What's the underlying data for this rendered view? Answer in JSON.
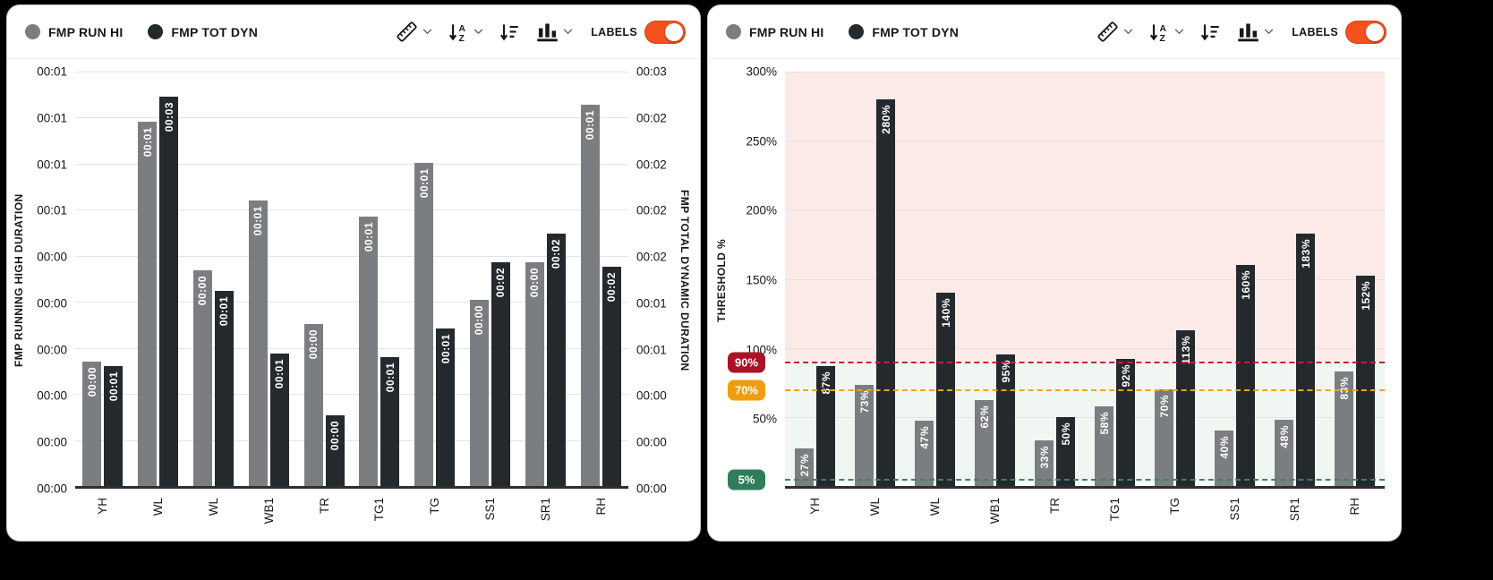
{
  "colors": {
    "page_bg": "#000000",
    "card_bg": "#ffffff",
    "bar_gray": "#7b7e81",
    "bar_dark": "#24292d",
    "accent_orange": "#f4511e",
    "threshold_red": "#ab1226",
    "threshold_red_line": "#c41f35",
    "threshold_amber": "#ef9d10",
    "threshold_amber_line": "#f2a31d",
    "threshold_green": "#2f7d5b",
    "threshold_green_line": "#2e8b62",
    "band_pink": "#fceae8",
    "band_green": "#f0f7f2",
    "grid": "#e4e4e4",
    "text": "#15181b"
  },
  "panels": [
    {
      "legend": [
        {
          "label": "FMP RUN HI",
          "color_key": "bar_gray"
        },
        {
          "label": "FMP TOT DYN",
          "color_key": "bar_dark"
        }
      ],
      "toolbar": {
        "labels_label": "LABELS",
        "labels_on": true,
        "icons": [
          "ruler-icon",
          "sort-alphabetical-icon",
          "sort-amount-icon",
          "chart-type-icon"
        ]
      }
    },
    {
      "legend": [
        {
          "label": "FMP RUN HI",
          "color_key": "bar_gray"
        },
        {
          "label": "FMP TOT DYN",
          "color_key": "bar_dark"
        }
      ],
      "toolbar": {
        "labels_label": "LABELS",
        "labels_on": true,
        "icons": [
          "ruler-icon",
          "sort-alphabetical-icon",
          "sort-amount-icon",
          "chart-type-icon"
        ]
      }
    }
  ],
  "chart_data": [
    {
      "type": "bar",
      "categories": [
        "YH",
        "WL",
        "WL",
        "WB1",
        "TR",
        "TG1",
        "TG",
        "SS1",
        "SR1",
        "RH"
      ],
      "ylim": [
        0,
        100
      ],
      "height_units": "percent_of_plot_estimated_from_pixels",
      "left_axis": {
        "title": "FMP RUNNING HIGH DURATION",
        "ticks": [
          "00:01",
          "00:01",
          "00:01",
          "00:01",
          "00:00",
          "00:00",
          "00:00",
          "00:00",
          "00:00",
          "00:00"
        ]
      },
      "right_axis": {
        "title": "FMP TOTAL DYNAMIC DURATION",
        "ticks": [
          "00:03",
          "00:02",
          "00:02",
          "00:02",
          "00:02",
          "00:01",
          "00:01",
          "00:00",
          "00:00",
          "00:00"
        ]
      },
      "grid": true,
      "series": [
        {
          "name": "FMP RUN HI",
          "color_key": "bar_gray",
          "values": [
            30,
            88,
            52,
            69,
            39,
            65,
            78,
            45,
            54,
            92
          ],
          "labels": [
            "00:00",
            "00:01",
            "00:00",
            "00:01",
            "00:00",
            "00:01",
            "00:01",
            "00:00",
            "00:00",
            "00:01"
          ]
        },
        {
          "name": "FMP TOT DYN",
          "color_key": "bar_dark",
          "values": [
            29,
            94,
            47,
            32,
            17,
            31,
            38,
            54,
            61,
            53
          ],
          "labels": [
            "00:01",
            "00:03",
            "00:01",
            "00:01",
            "00:00",
            "00:01",
            "00:01",
            "00:02",
            "00:02",
            "00:02"
          ]
        }
      ]
    },
    {
      "type": "bar",
      "categories": [
        "YH",
        "WL",
        "WL",
        "WB1",
        "TR",
        "TG1",
        "TG",
        "SS1",
        "SR1",
        "RH"
      ],
      "ylim": [
        0,
        300
      ],
      "left_axis": {
        "title": "THRESHOLD %",
        "ticks": [
          {
            "label": "300%",
            "value": 300
          },
          {
            "label": "250%",
            "value": 250
          },
          {
            "label": "200%",
            "value": 200
          },
          {
            "label": "150%",
            "value": 150
          },
          {
            "label": "100%",
            "value": 100
          },
          {
            "label": "50%",
            "value": 50
          }
        ]
      },
      "grid": true,
      "thresholds": [
        {
          "label": "90%",
          "value": 90,
          "badge_color_key": "threshold_red",
          "line_color_key": "threshold_red_line"
        },
        {
          "label": "70%",
          "value": 70,
          "badge_color_key": "threshold_amber",
          "line_color_key": "threshold_amber_line"
        },
        {
          "label": "5%",
          "value": 5,
          "badge_color_key": "threshold_green",
          "line_color_key": "threshold_green_line"
        }
      ],
      "bands": [
        {
          "from": 90,
          "to": 300,
          "color_key": "band_pink"
        },
        {
          "from": 5,
          "to": 90,
          "color_key": "band_green"
        }
      ],
      "series": [
        {
          "name": "FMP RUN HI",
          "color_key": "bar_gray",
          "values": [
            27,
            73,
            47,
            62,
            33,
            58,
            70,
            40,
            48,
            83
          ],
          "labels": [
            "27%",
            "73%",
            "47%",
            "62%",
            "33%",
            "58%",
            "70%",
            "40%",
            "48%",
            "83%"
          ]
        },
        {
          "name": "FMP TOT DYN",
          "color_key": "bar_dark",
          "values": [
            87,
            280,
            140,
            95,
            50,
            92,
            113,
            160,
            183,
            152
          ],
          "labels": [
            "87%",
            "280%",
            "140%",
            "95%",
            "50%",
            "92%",
            "113%",
            "160%",
            "183%",
            "152%"
          ]
        }
      ]
    }
  ]
}
